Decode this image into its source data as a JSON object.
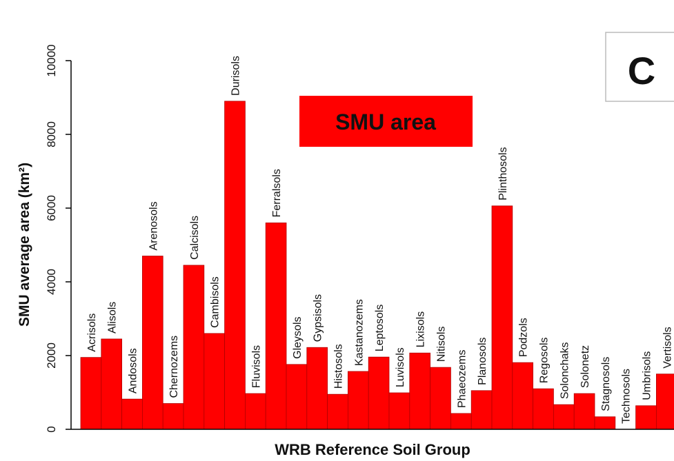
{
  "chart_data": {
    "type": "bar",
    "panel_label": "C",
    "legend_label": "SMU area",
    "color": "#ff0000",
    "y_label": "SMU average area (km²)",
    "x_label": "WRB Reference Soil Group",
    "categories": [
      "Acrisols",
      "Alisols",
      "Andosols",
      "Arenosols",
      "Chernozems",
      "Calcisols",
      "Cambisols",
      "Durisols",
      "Fluvisols",
      "Ferralsols",
      "Gleysols",
      "Gypsisols",
      "Histosols",
      "Kastanozems",
      "Leptosols",
      "Luvisols",
      "Lixisols",
      "Nitisols",
      "Phaeozems",
      "Planosols",
      "Plinthosols",
      "Podzols",
      "Regosols",
      "Solonchaks",
      "Solonetz",
      "Stagnosols",
      "Technosols",
      "Umbrisols",
      "Vertisols"
    ],
    "values": [
      1950,
      2450,
      820,
      4700,
      700,
      4450,
      2600,
      8900,
      970,
      5600,
      1760,
      2220,
      950,
      1570,
      1960,
      990,
      2070,
      1680,
      430,
      1050,
      6060,
      1810,
      1100,
      670,
      970,
      340,
      0,
      640,
      1500
    ],
    "ylim": [
      0,
      10000
    ],
    "yticks": [
      0,
      2000,
      4000,
      6000,
      8000,
      10000
    ]
  }
}
